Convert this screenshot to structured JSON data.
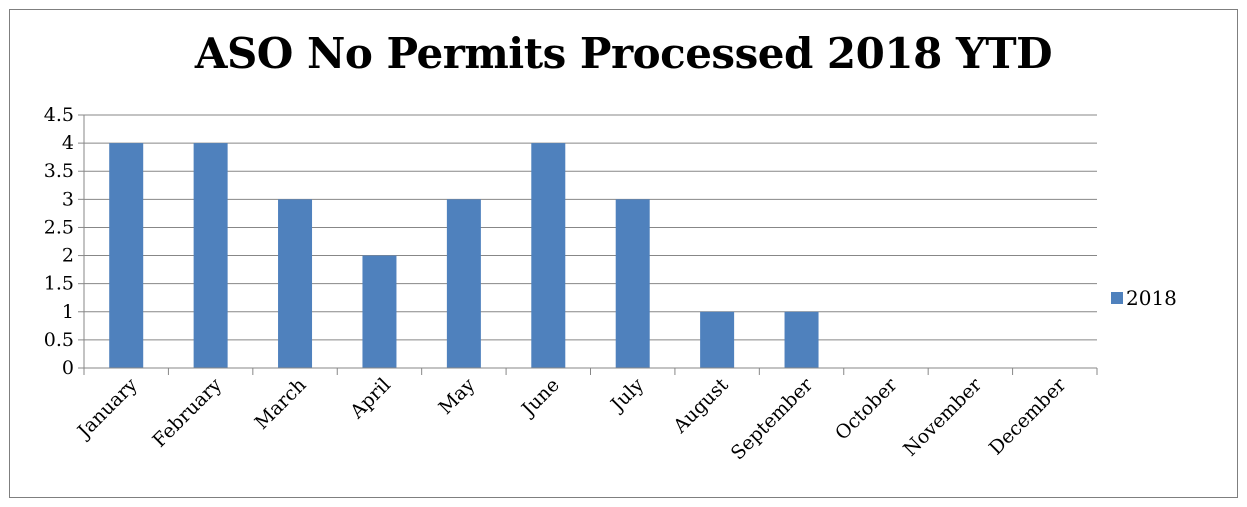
{
  "chart_data": {
    "type": "bar",
    "title": "ASO No Permits Processed 2018 YTD",
    "xlabel": "",
    "ylabel": "",
    "categories": [
      "January",
      "February",
      "March",
      "April",
      "May",
      "June",
      "July",
      "August",
      "September",
      "October",
      "November",
      "December"
    ],
    "series": [
      {
        "name": "2018",
        "color": "#4f81bd",
        "values": [
          4,
          4,
          3,
          2,
          3,
          4,
          3,
          1,
          1,
          0,
          0,
          0
        ]
      }
    ],
    "ylim": [
      0,
      4.5
    ],
    "yticks": [
      "0",
      "0.5",
      "1",
      "1.5",
      "2",
      "2.5",
      "3",
      "3.5",
      "4",
      "4.5"
    ],
    "grid": true,
    "legend_position": "right"
  }
}
